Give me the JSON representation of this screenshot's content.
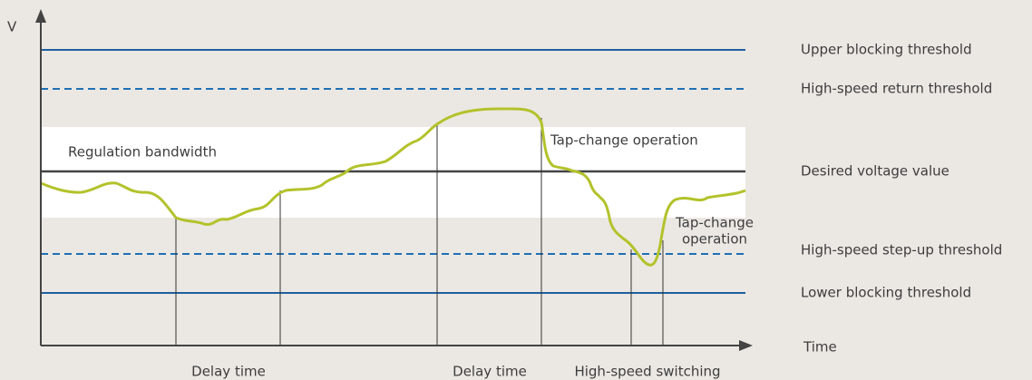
{
  "axis": {
    "y_label": "V",
    "x_label": "Time"
  },
  "thresholds": [
    "Upper blocking threshold",
    "High-speed return threshold",
    "Desired voltage value",
    "High-speed step-up threshold",
    "Lower blocking threshold"
  ],
  "annotations": {
    "band": "Regulation bandwidth",
    "tap_change_1": "Tap-change operation",
    "tap_change_2": [
      "Tap-change",
      "operation"
    ]
  },
  "intervals": [
    "Delay time",
    "Delay time",
    "High-speed switching"
  ]
}
